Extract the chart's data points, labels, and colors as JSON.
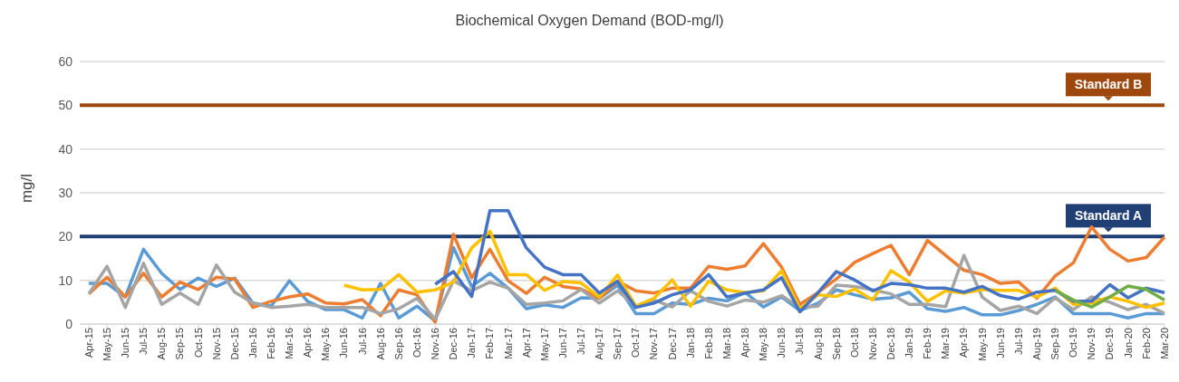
{
  "chart_data": {
    "type": "line",
    "title": "Biochemical Oxygen Demand (BOD-mg/l)",
    "ylabel": "mg/l",
    "categories": [
      "Apr-15",
      "May-15",
      "Jun-15",
      "Jul-15",
      "Aug-15",
      "Sep-15",
      "Oct-15",
      "Nov-15",
      "Dec-15",
      "Jan-16",
      "Feb-16",
      "Mar-16",
      "Apr-16",
      "May-16",
      "Jun-16",
      "Jul-16",
      "Aug-16",
      "Sep-16",
      "Oct-16",
      "Nov-16",
      "Dec-16",
      "Jan-17",
      "Feb-17",
      "Mar-17",
      "Apr-17",
      "May-17",
      "Jun-17",
      "Jul-17",
      "Aug-17",
      "Sep-17",
      "Oct-17",
      "Nov-17",
      "Dec-17",
      "Jan-18",
      "Feb-18",
      "Mar-18",
      "Apr-18",
      "May-18",
      "Jun-18",
      "Jul-18",
      "Aug-18",
      "Sep-18",
      "Oct-18",
      "Nov-18",
      "Dec-18",
      "Jan-19",
      "Feb-19",
      "Mar-19",
      "Apr-19",
      "May-19",
      "Jun-19",
      "Jul-19",
      "Aug-19",
      "Sep-19",
      "Oct-19",
      "Nov-19",
      "Dec-19",
      "Jan-20",
      "Feb-20",
      "Mar-20"
    ],
    "series": [
      {
        "color": "#5b9bd5",
        "values": [
          9.3,
          9.3,
          6.2,
          17.1,
          11.6,
          7.9,
          10.5,
          8.6,
          10.5,
          4.8,
          4.1,
          9.9,
          5.2,
          3.3,
          3.3,
          1.4,
          9.3,
          1.4,
          4.1,
          0.7,
          17.5,
          8.6,
          11.6,
          8.2,
          3.5,
          4.4,
          3.8,
          6,
          5.9,
          8.9,
          2.4,
          2.4,
          4.8,
          4.5,
          5.9,
          5.3,
          7.2,
          3.9,
          6.2,
          3.1,
          4.8,
          7.8,
          6.7,
          5.7,
          6,
          7.3,
          3.5,
          2.9,
          3.8,
          2.1,
          2.1,
          3.1,
          4.5,
          6.2,
          2.4,
          2.4,
          2.4,
          1.4,
          2.4,
          2.4
        ]
      },
      {
        "color": "#ed7d31",
        "values": [
          6.9,
          10.7,
          6.2,
          11.6,
          6.2,
          9.6,
          7.9,
          10.7,
          10.3,
          3.8,
          5.2,
          6.2,
          6.9,
          4.8,
          4.6,
          5.6,
          1.9,
          7.8,
          6.7,
          0.4,
          20.5,
          10.6,
          17.1,
          9.9,
          7,
          10.7,
          8.6,
          8,
          5.9,
          9.8,
          7.6,
          7.1,
          8.2,
          8.2,
          13.2,
          12.5,
          13.3,
          18.4,
          13,
          4.5,
          7.2,
          10.3,
          14.1,
          16.1,
          18,
          11.3,
          19.1,
          15.7,
          12.3,
          11.3,
          9.3,
          9.6,
          5.9,
          11,
          14,
          22.2,
          17.1,
          14.4,
          15.2,
          19.9
        ]
      },
      {
        "color": "#a5a5a5",
        "values": [
          6.9,
          13.2,
          3.8,
          13.9,
          4.5,
          7.1,
          4.5,
          13.5,
          7.3,
          4.8,
          3.8,
          4.1,
          4.5,
          3.8,
          3.8,
          3.8,
          2.4,
          3.5,
          5.9,
          1.1,
          9.9,
          7.6,
          9.6,
          8.2,
          4.5,
          4.8,
          5.3,
          7.9,
          4.8,
          7.6,
          4.1,
          5.5,
          3.9,
          7.6,
          5.2,
          4.1,
          5.5,
          5,
          6.5,
          3.8,
          4.1,
          8.9,
          8.6,
          7.8,
          6.9,
          4.5,
          4.5,
          4,
          15.7,
          6.2,
          3.1,
          4.1,
          2.4,
          6,
          3.3,
          6.2,
          5,
          3.3,
          4.5,
          2.4
        ]
      },
      {
        "color": "#ffc000",
        "values": [
          null,
          null,
          null,
          null,
          null,
          null,
          null,
          null,
          null,
          null,
          null,
          null,
          null,
          null,
          8.9,
          7.8,
          7.9,
          11.3,
          7.3,
          7.8,
          9.6,
          17.4,
          21.2,
          11.3,
          11.3,
          7.7,
          9.7,
          9.4,
          6.2,
          11.2,
          4.1,
          5.9,
          10.1,
          4.1,
          9.8,
          7.8,
          7.2,
          7.6,
          12.2,
          3.5,
          6.7,
          6.3,
          8,
          5.5,
          12.2,
          9.6,
          5.2,
          7.6,
          7.1,
          7.9,
          7.7,
          7.7,
          6.2,
          8.2,
          4.5,
          4.8,
          6.2,
          5.2,
          3.8,
          4.8
        ]
      },
      {
        "color": "#4472c4",
        "values": [
          null,
          null,
          null,
          null,
          null,
          null,
          null,
          null,
          null,
          null,
          null,
          null,
          null,
          null,
          null,
          null,
          null,
          null,
          null,
          9.1,
          12,
          6.3,
          25.9,
          25.9,
          17.4,
          13,
          11.3,
          11.3,
          7.1,
          9.8,
          3.8,
          4.8,
          6.7,
          7.8,
          11.3,
          6.2,
          7.1,
          7.8,
          10.6,
          2.8,
          7.2,
          12,
          10.1,
          7.6,
          9.3,
          9,
          8.2,
          8.2,
          7.3,
          8.6,
          6.5,
          5.7,
          7.3,
          7.7,
          5.2,
          5.2,
          9,
          6,
          8.2,
          7.2
        ]
      },
      {
        "color": "#70ad47",
        "values": [
          null,
          null,
          null,
          null,
          null,
          null,
          null,
          null,
          null,
          null,
          null,
          null,
          null,
          null,
          null,
          null,
          null,
          null,
          null,
          null,
          null,
          null,
          null,
          null,
          null,
          null,
          null,
          null,
          null,
          null,
          null,
          null,
          null,
          null,
          null,
          null,
          null,
          null,
          null,
          null,
          null,
          null,
          null,
          null,
          null,
          null,
          null,
          null,
          null,
          null,
          null,
          null,
          null,
          7.7,
          5.5,
          3.9,
          6.2,
          8.7,
          7.9,
          5.5
        ]
      }
    ],
    "ylim": [
      0,
      60
    ],
    "yticks": [
      0,
      10,
      20,
      30,
      40,
      50,
      60
    ],
    "grid": "y",
    "line_style": "solid",
    "ref_lines": [
      {
        "axis": "y",
        "value": 20,
        "label": "Standard A",
        "color": "#203f74"
      },
      {
        "axis": "y",
        "value": 50,
        "label": "Standard B",
        "color": "#9e480e"
      }
    ]
  }
}
